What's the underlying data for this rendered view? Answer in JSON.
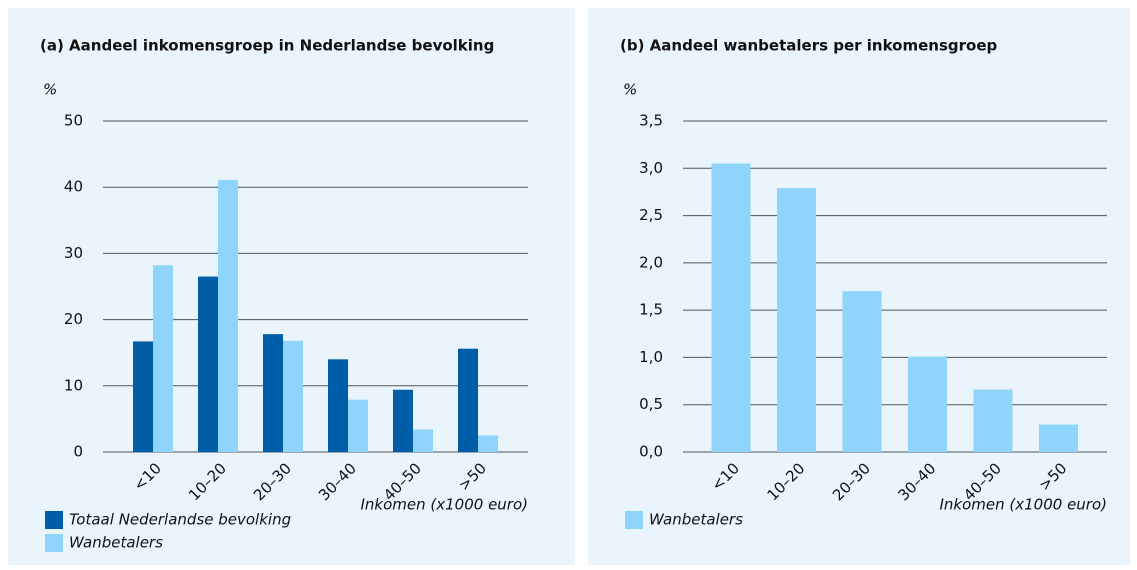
{
  "chart_data": [
    {
      "type": "bar",
      "title": "(a) Aandeel inkomensgroep in Nederlandse bevolking",
      "y_label": "%",
      "x_label": "Inkomen (x1000 euro)",
      "categories": [
        "<10",
        "10–20",
        "20–30",
        "30–40",
        "40–50",
        ">50"
      ],
      "series": [
        {
          "name": "Totaal Nederlandse bevolking",
          "color": "#005ea8",
          "values": [
            16.7,
            26.5,
            17.8,
            14.0,
            9.4,
            15.6
          ]
        },
        {
          "name": "Wanbetalers",
          "color": "#8ed4fb",
          "values": [
            28.2,
            41.1,
            16.8,
            7.9,
            3.4,
            2.5
          ]
        }
      ],
      "ylim": [
        0,
        50
      ],
      "yticks": [
        0,
        10,
        20,
        30,
        40,
        50
      ],
      "grid": true
    },
    {
      "type": "bar",
      "title": "(b) Aandeel wanbetalers per inkomensgroep",
      "y_label": "%",
      "x_label": "Inkomen (x1000 euro)",
      "categories": [
        "<10",
        "10–20",
        "20–30",
        "30–40",
        "40–50",
        ">50"
      ],
      "series": [
        {
          "name": "Wanbetalers",
          "color": "#8ed4fb",
          "values": [
            3.05,
            2.79,
            1.7,
            1.01,
            0.66,
            0.29
          ]
        }
      ],
      "ylim": [
        0,
        3.5
      ],
      "yticks": [
        {
          "value": 0,
          "label": "0,0"
        },
        {
          "value": 0.5,
          "label": "0,5"
        },
        {
          "value": 1,
          "label": "1,0"
        },
        {
          "value": 1.5,
          "label": "1,5"
        },
        {
          "value": 2,
          "label": "2,0"
        },
        {
          "value": 2.5,
          "label": "2,5"
        },
        {
          "value": 3,
          "label": "3,0"
        },
        {
          "value": 3.5,
          "label": "3,5"
        }
      ],
      "grid": true
    }
  ]
}
